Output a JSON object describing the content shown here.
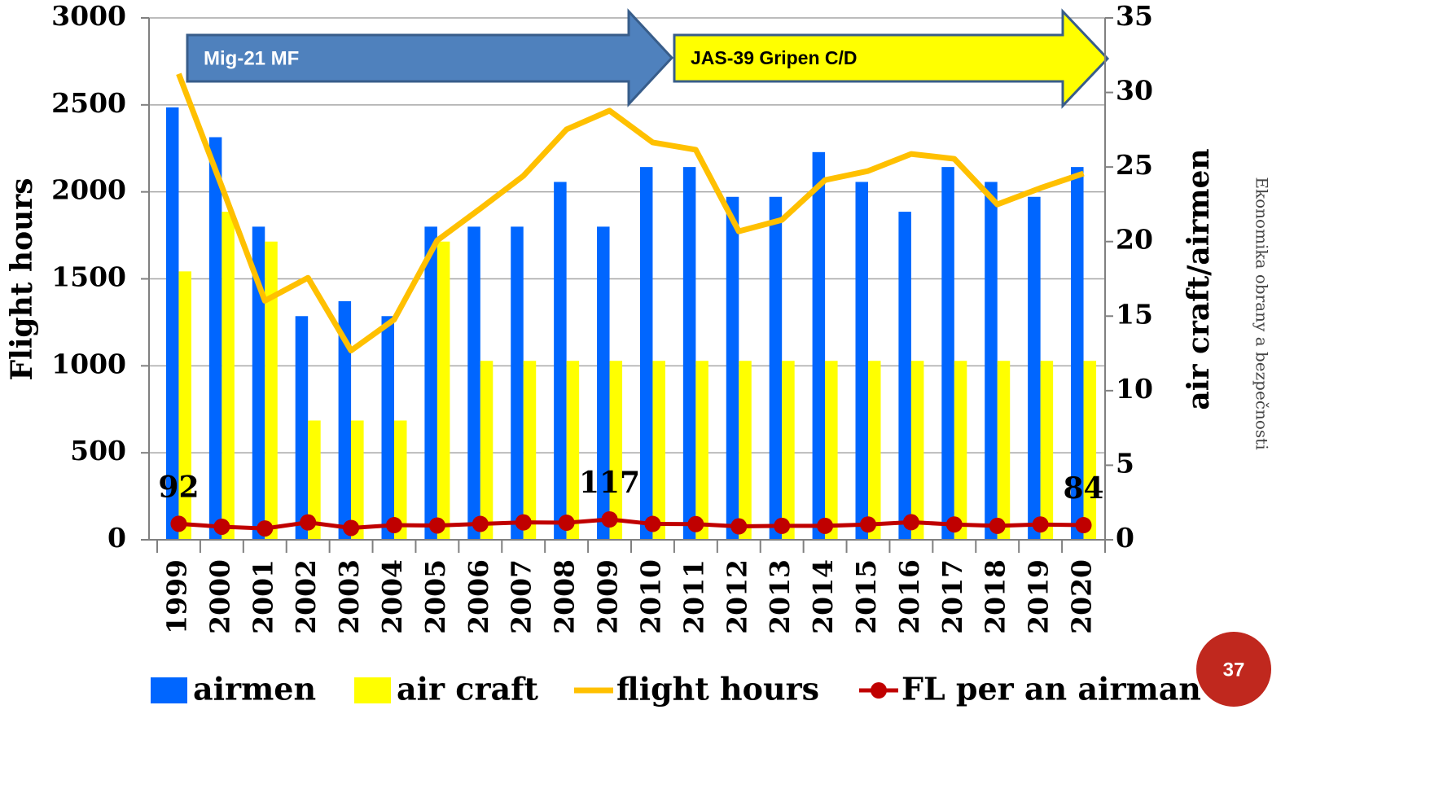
{
  "chart_data": {
    "type": "bar",
    "categories": [
      "1999",
      "2000",
      "2001",
      "2002",
      "2003",
      "2004",
      "2005",
      "2006",
      "2007",
      "2008",
      "2009",
      "2010",
      "2011",
      "2012",
      "2013",
      "2014",
      "2015",
      "2016",
      "2017",
      "2018",
      "2019",
      "2020"
    ],
    "series": [
      {
        "name": "airmen",
        "type": "bar",
        "axis": "y2",
        "color": "#0066ff",
        "values": [
          29,
          27,
          21,
          15,
          16,
          15,
          21,
          21,
          21,
          24,
          21,
          25,
          25,
          23,
          23,
          26,
          24,
          22,
          25,
          24,
          23,
          25
        ]
      },
      {
        "name": "air craft",
        "type": "bar",
        "axis": "y2",
        "color": "#ffff00",
        "values": [
          18,
          22,
          20,
          8,
          8,
          8,
          20,
          12,
          12,
          12,
          12,
          12,
          12,
          12,
          12,
          12,
          12,
          12,
          12,
          12,
          12,
          12
        ]
      },
      {
        "name": "flight hours",
        "type": "line",
        "axis": "y",
        "color": "#ffc000",
        "values": [
          2678,
          2031,
          1374,
          1506,
          1088,
          1266,
          1721,
          1904,
          2092,
          2359,
          2467,
          2284,
          2242,
          1773,
          1839,
          2068,
          2120,
          2218,
          2190,
          1928,
          2022,
          2106
        ]
      },
      {
        "name": "FL per an airman",
        "type": "line",
        "axis": "y",
        "color": "#c00000",
        "markers": true,
        "labeled": [
          0,
          10,
          21
        ],
        "values": [
          92,
          75,
          65,
          100,
          68,
          84,
          82,
          91,
          100,
          98,
          117,
          91,
          90,
          77,
          80,
          80,
          88,
          101,
          88,
          80,
          88,
          84
        ]
      }
    ],
    "ylabel": "Flight hours",
    "y2label": "air craft/airmen",
    "ylim": [
      0,
      3000
    ],
    "yticks": [
      0,
      500,
      1000,
      1500,
      2000,
      2500,
      3000
    ],
    "y2lim": [
      0,
      35
    ],
    "y2ticks": [
      0,
      5,
      10,
      15,
      20,
      25,
      30,
      35
    ],
    "grid": true,
    "legend": "bottom",
    "annotations": [
      "Mig-21 MF",
      "JAS-39 Gripen C/D"
    ]
  },
  "footer": {
    "side_text": "Ekonomika obrany a bezpečnosti",
    "page_number": "37"
  }
}
